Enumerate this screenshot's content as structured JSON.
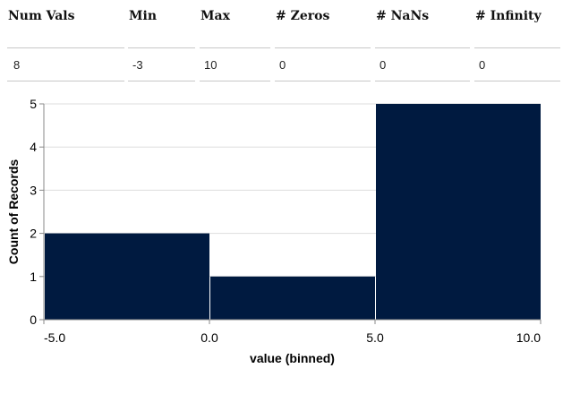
{
  "stats": {
    "headers": [
      "Num Vals",
      "Min",
      "Max",
      "# Zeros",
      "# NaNs",
      "# Infinity"
    ],
    "values": [
      "8",
      "-3",
      "10",
      "0",
      "0",
      "0"
    ]
  },
  "chart_data": {
    "type": "bar",
    "bins": [
      {
        "x0": -5,
        "x1": 0,
        "count": 2
      },
      {
        "x0": 0,
        "x1": 5,
        "count": 1
      },
      {
        "x0": 5,
        "x1": 10,
        "count": 5
      }
    ],
    "xlabel": "value (binned)",
    "ylabel": "Count of Records",
    "xlim": [
      -5,
      10
    ],
    "ylim": [
      0,
      5
    ],
    "xticks": [
      -5,
      0,
      5,
      10
    ],
    "xtick_labels": [
      "-5.0",
      "0.0",
      "5.0",
      "10.0"
    ],
    "yticks": [
      0,
      1,
      2,
      3,
      4,
      5
    ],
    "ytick_labels": [
      "0",
      "1",
      "2",
      "3",
      "4",
      "5"
    ],
    "grid": true,
    "bar_color": "#001a40",
    "grid_color": "#dddddd",
    "axis_color": "#888888"
  }
}
